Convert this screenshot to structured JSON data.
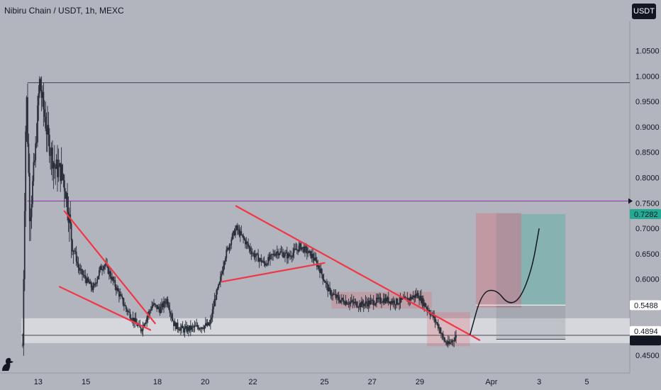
{
  "header": {
    "title": "Nibiru Chain / USDT, 1h, MEXC",
    "currency_button": "USDT"
  },
  "chart_data": {
    "type": "candlestick",
    "symbol": "Nibiru Chain / USDT",
    "interval": "1h",
    "exchange": "MEXC",
    "y_ticks": [
      "1.0500",
      "1.0000",
      "0.9500",
      "0.9000",
      "0.8500",
      "0.8000",
      "0.7500",
      "0.7000",
      "0.6500",
      "0.6000",
      "0.5500",
      "0.5000",
      "0.4500"
    ],
    "y_tick_values": [
      1.05,
      1.0,
      0.95,
      0.9,
      0.85,
      0.8,
      0.75,
      0.7,
      0.65,
      0.6,
      0.55,
      0.5,
      0.45
    ],
    "ylim": [
      0.418,
      1.108
    ],
    "x_ticks": [
      "13",
      "15",
      "18",
      "20",
      "22",
      "25",
      "27",
      "29",
      "Apr",
      "3",
      "5"
    ],
    "x_tick_days": [
      13,
      15,
      18,
      20,
      22,
      25,
      27,
      29,
      32,
      34,
      36
    ],
    "xlim": [
      11.4,
      37.8
    ],
    "price_labels": [
      {
        "text": "0.7282",
        "value": 0.7282,
        "color": "#22ab94",
        "text_color": "#ffffff"
      },
      {
        "text": "0.5488",
        "value": 0.5488,
        "color": "#ffffff",
        "text_color": "#131722"
      },
      {
        "text": "0.4894",
        "value": 0.4894,
        "color": "#ffffff",
        "text_color": "#131722"
      },
      {
        "text": "0.4891",
        "value": 0.4891,
        "color": "#131722",
        "text_color": "#ffffff"
      }
    ],
    "horizontal_levels": [
      {
        "value": 0.987,
        "color": "#434651",
        "start_day": 12.55
      },
      {
        "value": 0.754,
        "color": "#9c27b0",
        "start_day": 12.55
      },
      {
        "value": 0.4894,
        "color": "#434651",
        "start_day": 12.3
      }
    ],
    "support_zone": {
      "low": 0.474,
      "high": 0.523,
      "color": "#d8dae0"
    },
    "price_path": [
      [
        12.35,
        0.47
      ],
      [
        12.5,
        0.98
      ],
      [
        12.65,
        0.72
      ],
      [
        12.9,
        0.86
      ],
      [
        13.05,
        0.99
      ],
      [
        13.4,
        0.88
      ],
      [
        13.7,
        0.82
      ],
      [
        14.0,
        0.81
      ],
      [
        14.2,
        0.76
      ],
      [
        14.4,
        0.68
      ],
      [
        14.7,
        0.62
      ],
      [
        15.0,
        0.6
      ],
      [
        15.3,
        0.58
      ],
      [
        15.6,
        0.62
      ],
      [
        15.8,
        0.63
      ],
      [
        16.1,
        0.6
      ],
      [
        16.4,
        0.57
      ],
      [
        16.7,
        0.54
      ],
      [
        17.0,
        0.52
      ],
      [
        17.3,
        0.5
      ],
      [
        17.5,
        0.52
      ],
      [
        17.8,
        0.55
      ],
      [
        18.1,
        0.54
      ],
      [
        18.4,
        0.56
      ],
      [
        18.7,
        0.51
      ],
      [
        19.1,
        0.5
      ],
      [
        19.6,
        0.505
      ],
      [
        20.2,
        0.51
      ],
      [
        20.4,
        0.56
      ],
      [
        20.6,
        0.59
      ],
      [
        20.8,
        0.64
      ],
      [
        21.1,
        0.68
      ],
      [
        21.3,
        0.7
      ],
      [
        21.6,
        0.68
      ],
      [
        22.0,
        0.65
      ],
      [
        22.5,
        0.63
      ],
      [
        23.0,
        0.655
      ],
      [
        23.5,
        0.645
      ],
      [
        24.0,
        0.665
      ],
      [
        24.5,
        0.645
      ],
      [
        24.8,
        0.62
      ],
      [
        25.2,
        0.575
      ],
      [
        25.6,
        0.56
      ],
      [
        26.0,
        0.555
      ],
      [
        26.5,
        0.55
      ],
      [
        27.0,
        0.555
      ],
      [
        27.5,
        0.56
      ],
      [
        28.0,
        0.555
      ],
      [
        28.5,
        0.56
      ],
      [
        28.9,
        0.57
      ],
      [
        29.2,
        0.55
      ],
      [
        29.5,
        0.53
      ],
      [
        29.8,
        0.505
      ],
      [
        30.0,
        0.48
      ],
      [
        30.2,
        0.47
      ],
      [
        30.4,
        0.482
      ],
      [
        30.55,
        0.489
      ]
    ],
    "trendlines": [
      {
        "color": "#f23645",
        "from": [
          14.1,
          0.734
        ],
        "to": [
          17.9,
          0.513
        ]
      },
      {
        "color": "#f23645",
        "from": [
          13.9,
          0.585
        ],
        "to": [
          17.7,
          0.5
        ]
      },
      {
        "color": "#f23645",
        "from": [
          21.3,
          0.744
        ],
        "to": [
          31.5,
          0.48
        ]
      },
      {
        "color": "#f23645",
        "from": [
          20.7,
          0.595
        ],
        "to": [
          25.0,
          0.632
        ]
      }
    ],
    "boxes": [
      {
        "x0": 25.3,
        "x1": 29.5,
        "y0": 0.542,
        "y1": 0.575,
        "color": "#f23645",
        "opacity": 0.18
      },
      {
        "x0": 29.3,
        "x1": 31.1,
        "y0": 0.468,
        "y1": 0.535,
        "color": "#f23645",
        "opacity": 0.18
      }
    ],
    "position": {
      "x0": 31.35,
      "x1": 35.1,
      "entry": 0.549,
      "stop": 0.4818,
      "target": 0.7282,
      "loss_box": {
        "x0": 31.35,
        "x1": 33.25,
        "y0": 0.544,
        "y1": 0.73
      },
      "profit_box": {
        "x0": 33.25,
        "x1": 35.1,
        "y0": 0.5488,
        "y1": 0.7282
      },
      "gray_top": {
        "x0": 32.2,
        "x1": 33.25,
        "y0": 0.544,
        "y1": 0.73
      },
      "gray_bottom": {
        "x0": 32.2,
        "x1": 35.1,
        "y0": 0.4818,
        "y1": 0.5488
      }
    },
    "projection_path": [
      [
        31.1,
        0.49
      ],
      [
        31.6,
        0.575
      ],
      [
        32.2,
        0.58
      ],
      [
        32.7,
        0.55
      ],
      [
        33.2,
        0.56
      ],
      [
        33.7,
        0.62
      ],
      [
        34.0,
        0.7
      ]
    ]
  }
}
